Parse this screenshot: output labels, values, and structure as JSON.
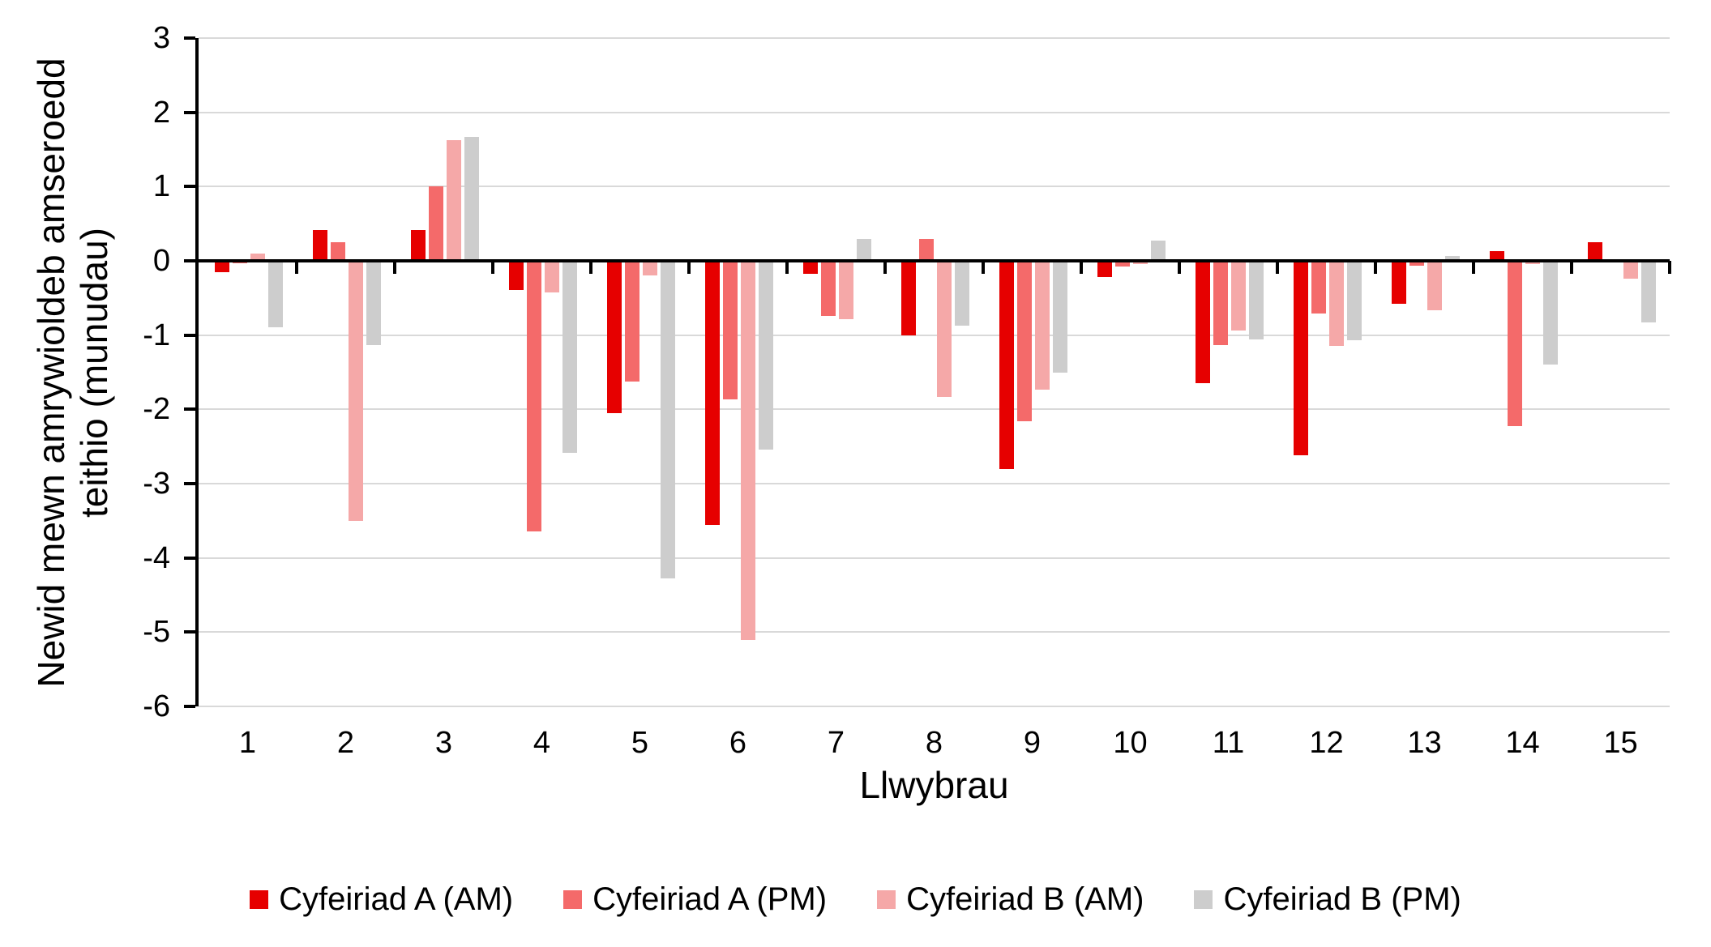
{
  "chart_data": {
    "type": "bar",
    "title": "",
    "xlabel": "Llwybrau",
    "ylabel": "Newid mewn amrywioldeb amseroedd teithio (munudau)",
    "ylabel_line1": "Newid mewn amrywioldeb amseroedd",
    "ylabel_line2": "teithio (munudau)",
    "categories": [
      "1",
      "2",
      "3",
      "4",
      "5",
      "6",
      "7",
      "8",
      "9",
      "10",
      "11",
      "12",
      "13",
      "14",
      "15"
    ],
    "ylim": [
      -6,
      3
    ],
    "yticks": [
      3,
      2,
      1,
      0,
      -1,
      -2,
      -3,
      -4,
      -5,
      -6
    ],
    "grid": true,
    "legend_position": "bottom",
    "series": [
      {
        "name": "Cyfeiriad A (AM)",
        "color": "#E60000",
        "values": [
          -0.15,
          0.41,
          0.42,
          -0.39,
          -2.05,
          -3.56,
          -0.17,
          -1.0,
          -2.8,
          -0.22,
          -1.65,
          -2.62,
          -0.58,
          0.13,
          0.25
        ]
      },
      {
        "name": "Cyfeiriad A (PM)",
        "color": "#F46A6A",
        "values": [
          -0.03,
          0.25,
          1.0,
          -3.64,
          -1.62,
          -1.86,
          -0.74,
          0.3,
          -2.16,
          -0.08,
          -1.13,
          -0.71,
          -0.07,
          -2.22,
          0
        ]
      },
      {
        "name": "Cyfeiriad B (AM)",
        "color": "#F5A8A8",
        "values": [
          0.1,
          -3.5,
          1.63,
          -0.43,
          -0.2,
          -5.1,
          -0.78,
          -1.83,
          -1.73,
          -0.04,
          -0.94,
          -1.15,
          -0.66,
          -0.04,
          -0.24
        ]
      },
      {
        "name": "Cyfeiriad B (PM)",
        "color": "#CDCDCD",
        "values": [
          -0.89,
          -1.13,
          1.67,
          -2.59,
          -4.28,
          -2.54,
          0.3,
          -0.87,
          -1.51,
          0.27,
          -1.06,
          -1.07,
          0.07,
          -1.4,
          -0.83
        ]
      }
    ]
  },
  "colors": {
    "background": "#FFFFFF",
    "gridline": "#D9D9D9",
    "axis": "#000000",
    "text": "#000000"
  }
}
